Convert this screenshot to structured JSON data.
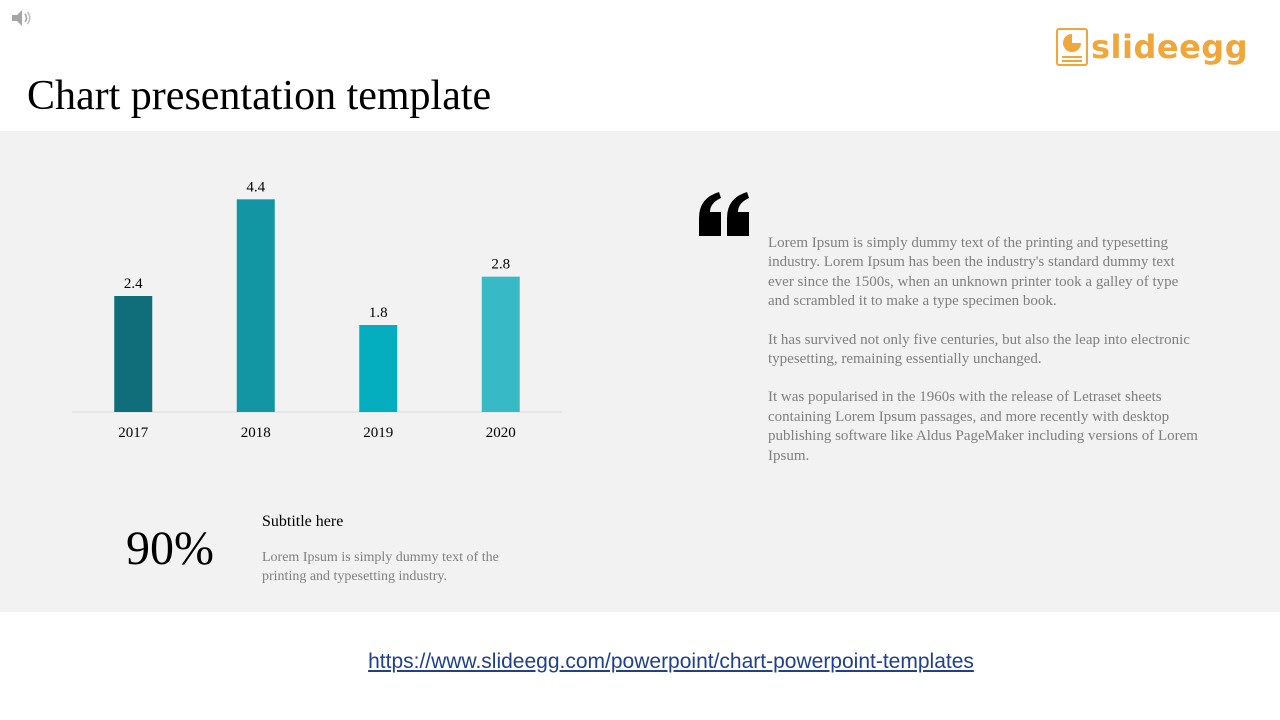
{
  "slide": {
    "title": "Chart presentation template",
    "logo_text": "slideegg",
    "footer_link": "https://www.slideegg.com/powerpoint/chart-powerpoint-templates"
  },
  "quote": {
    "paragraphs": [
      "Lorem Ipsum is simply dummy text of the printing and typesetting industry. Lorem Ipsum has been the industry's standard dummy text ever since the 1500s, when an unknown printer took a galley of type and scrambled it to make a type specimen book.",
      "It has survived not only five centuries, but also the leap into electronic typesetting, remaining essentially unchanged.",
      "It was popularised in the 1960s with the release of Letraset sheets containing Lorem Ipsum passages, and more recently with desktop publishing software like Aldus PageMaker including versions of Lorem Ipsum."
    ]
  },
  "stat": {
    "value": "90%",
    "subtitle": "Subtitle here",
    "description": "Lorem Ipsum is simply dummy text of the printing and typesetting industry."
  },
  "colors": {
    "logo": "#f0a63a",
    "panel": "#f2f2f2",
    "axis": "#d9d9d9"
  },
  "icons": {
    "speaker": "speaker-icon",
    "quote": "quote-icon",
    "logo": "logo-icon"
  },
  "chart_data": {
    "type": "bar",
    "categories": [
      "2017",
      "2018",
      "2019",
      "2020"
    ],
    "values": [
      2.4,
      4.4,
      1.8,
      2.8
    ],
    "data_labels": [
      "2.4",
      "4.4",
      "1.8",
      "2.8"
    ],
    "colors": [
      "#106e7a",
      "#1396a4",
      "#05aebf",
      "#38b9c6"
    ],
    "ylim": [
      0,
      4.8
    ],
    "title": "",
    "xlabel": "",
    "ylabel": "",
    "grid": false,
    "legend": "none"
  }
}
